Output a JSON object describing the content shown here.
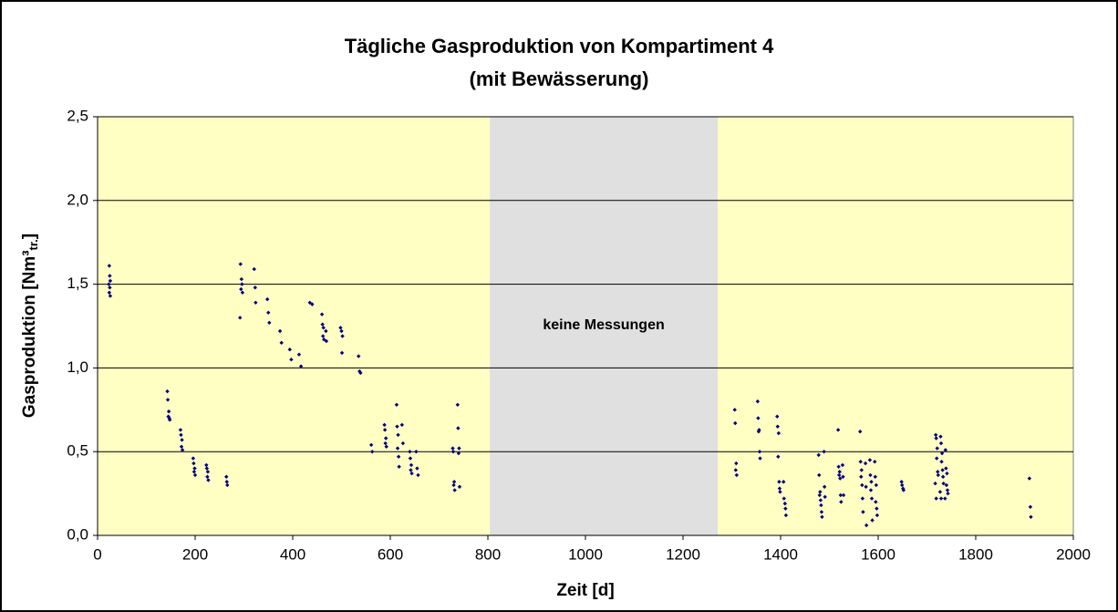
{
  "chart_data": {
    "type": "scatter",
    "title": "Tägliche Gasproduktion von Kompartiment 4",
    "subtitle": "(mit Bewässerung)",
    "xlabel": "Zeit [d]",
    "ylabel_parts": [
      "Gasproduktion [Nm³",
      "tr.",
      "]"
    ],
    "xlim": [
      0,
      2000
    ],
    "xticks": [
      0,
      200,
      400,
      600,
      800,
      1000,
      1200,
      1400,
      1600,
      1800,
      2000
    ],
    "ylim": [
      0,
      2.5
    ],
    "yticks": [
      {
        "value": 0,
        "label": "0,0"
      },
      {
        "value": 0.5,
        "label": "0,5"
      },
      {
        "value": 1,
        "label": "1,0"
      },
      {
        "value": 1.5,
        "label": "1,5"
      },
      {
        "value": 2,
        "label": "2,0"
      },
      {
        "value": 2.5,
        "label": "2,5"
      }
    ],
    "grid": true,
    "background": "#ffffc4",
    "shaded_region": {
      "xlim": [
        804,
        1271
      ],
      "label": "keine Messungen",
      "color": "#e0e0e0"
    },
    "series": [
      {
        "color": "#000080",
        "x": [
          24,
          25,
          26,
          23,
          25,
          24,
          26,
          143,
          144,
          146,
          145,
          147,
          148,
          170,
          171,
          173,
          172,
          174,
          196,
          197,
          199,
          198,
          200,
          223,
          224,
          226,
          225,
          227,
          264,
          265,
          266,
          293,
          295,
          296,
          294,
          297,
          292,
          321,
          323,
          324,
          348,
          350,
          352,
          374,
          377,
          394,
          397,
          413,
          417,
          435,
          440,
          460,
          461,
          463,
          462,
          464,
          468,
          469,
          498,
          500,
          502,
          501,
          535,
          537,
          539,
          561,
          563,
          588,
          589,
          591,
          590,
          592,
          613,
          614,
          616,
          615,
          617,
          618,
          624,
          626,
          640,
          641,
          643,
          642,
          644,
          653,
          655,
          657,
          728,
          729,
          731,
          730,
          732,
          738,
          739,
          741,
          740,
          742,
          1306,
          1307,
          1309,
          1308,
          1310,
          1353,
          1354,
          1356,
          1355,
          1357,
          1358,
          1393,
          1394,
          1396,
          1395,
          1397,
          1398,
          1399,
          1406,
          1407,
          1409,
          1410,
          1411,
          1478,
          1479,
          1481,
          1480,
          1482,
          1483,
          1484,
          1485,
          1489,
          1490,
          1491,
          1518,
          1519,
          1521,
          1520,
          1522,
          1523,
          1524,
          1527,
          1528,
          1529,
          1563,
          1564,
          1566,
          1565,
          1567,
          1568,
          1569,
          1574,
          1575,
          1576,
          1583,
          1584,
          1586,
          1585,
          1587,
          1588,
          1593,
          1594,
          1596,
          1595,
          1597,
          1598,
          1648,
          1649,
          1651,
          1652,
          1718,
          1719,
          1721,
          1720,
          1722,
          1723,
          1717,
          1719,
          1728,
          1729,
          1731,
          1730,
          1732,
          1733,
          1734,
          1727,
          1729,
          1738,
          1739,
          1741,
          1740,
          1742,
          1743,
          1737,
          1910,
          1912,
          1913
        ],
        "y": [
          1.61,
          1.55,
          1.52,
          1.5,
          1.48,
          1.45,
          1.43,
          0.86,
          0.81,
          0.74,
          0.71,
          0.7,
          0.69,
          0.63,
          0.6,
          0.57,
          0.53,
          0.51,
          0.46,
          0.43,
          0.4,
          0.38,
          0.36,
          0.42,
          0.4,
          0.38,
          0.35,
          0.33,
          0.35,
          0.32,
          0.3,
          1.62,
          1.53,
          1.5,
          1.47,
          1.45,
          1.3,
          1.59,
          1.48,
          1.39,
          1.41,
          1.33,
          1.27,
          1.22,
          1.15,
          1.11,
          1.05,
          1.08,
          1.01,
          1.39,
          1.38,
          1.32,
          1.26,
          1.24,
          1.19,
          1.17,
          1.22,
          1.16,
          1.24,
          1.22,
          1.19,
          1.09,
          1.07,
          0.98,
          0.97,
          0.54,
          0.5,
          0.66,
          0.63,
          0.58,
          0.55,
          0.53,
          0.78,
          0.65,
          0.6,
          0.52,
          0.47,
          0.41,
          0.66,
          0.55,
          0.5,
          0.46,
          0.42,
          0.39,
          0.37,
          0.5,
          0.4,
          0.36,
          0.52,
          0.5,
          0.32,
          0.3,
          0.27,
          0.78,
          0.64,
          0.52,
          0.49,
          0.29,
          0.75,
          0.67,
          0.43,
          0.39,
          0.36,
          0.8,
          0.7,
          0.63,
          0.62,
          0.5,
          0.46,
          0.71,
          0.65,
          0.61,
          0.47,
          0.32,
          0.28,
          0.26,
          0.32,
          0.22,
          0.19,
          0.16,
          0.12,
          0.48,
          0.36,
          0.26,
          0.24,
          0.21,
          0.18,
          0.14,
          0.11,
          0.5,
          0.29,
          0.23,
          0.63,
          0.41,
          0.38,
          0.36,
          0.34,
          0.24,
          0.2,
          0.42,
          0.35,
          0.24,
          0.62,
          0.44,
          0.39,
          0.35,
          0.3,
          0.22,
          0.14,
          0.43,
          0.29,
          0.06,
          0.45,
          0.36,
          0.32,
          0.27,
          0.22,
          0.09,
          0.44,
          0.35,
          0.3,
          0.2,
          0.16,
          0.12,
          0.32,
          0.3,
          0.28,
          0.27,
          0.6,
          0.58,
          0.52,
          0.46,
          0.38,
          0.36,
          0.31,
          0.22,
          0.59,
          0.55,
          0.49,
          0.44,
          0.39,
          0.35,
          0.31,
          0.26,
          0.22,
          0.51,
          0.4,
          0.37,
          0.3,
          0.27,
          0.25,
          0.22,
          0.34,
          0.17,
          0.11
        ]
      }
    ]
  }
}
